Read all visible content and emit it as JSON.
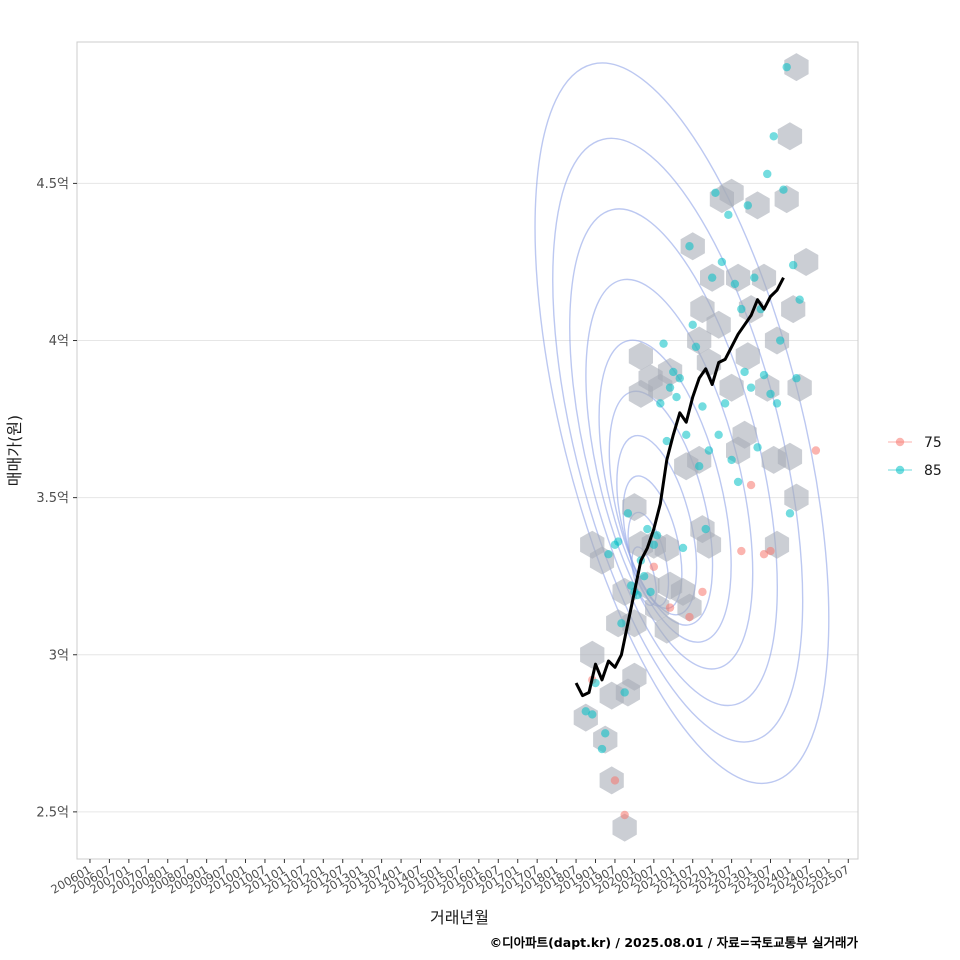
{
  "chart_data": {
    "type": "scatter",
    "xlabel": "거래년월",
    "ylabel": "매매가(원)",
    "caption": "©디아파트(dapt.kr) / 2025.08.01 / 자료=국토교통부 실거래가",
    "x_ticks": [
      "200601",
      "200607",
      "200701",
      "200707",
      "200801",
      "200807",
      "200901",
      "200907",
      "201001",
      "201007",
      "201101",
      "201107",
      "201201",
      "201207",
      "201301",
      "201307",
      "201401",
      "201407",
      "201501",
      "201507",
      "201601",
      "201607",
      "201701",
      "201707",
      "201801",
      "201807",
      "201901",
      "201907",
      "202001",
      "202007",
      "202101",
      "202107",
      "202201",
      "202207",
      "202301",
      "202307",
      "202401",
      "202407",
      "202501",
      "202507"
    ],
    "y_ticks": [
      {
        "value": 2.5,
        "label": "2.5억"
      },
      {
        "value": 3.0,
        "label": "3억"
      },
      {
        "value": 3.5,
        "label": "3.5억"
      },
      {
        "value": 4.0,
        "label": "4억"
      },
      {
        "value": 4.5,
        "label": "4.5억"
      }
    ],
    "ylim": [
      2.35,
      4.95
    ],
    "xlim": [
      "200509",
      "202510"
    ],
    "grid": "horizontal",
    "legend_position": "right",
    "series": [
      {
        "name": "75",
        "color": "#F8766D",
        "points": [
          {
            "x": "201812",
            "y": 2.92
          },
          {
            "x": "201907",
            "y": 2.6
          },
          {
            "x": "201910",
            "y": 2.49
          },
          {
            "x": "202007",
            "y": 3.28
          },
          {
            "x": "202012",
            "y": 3.15
          },
          {
            "x": "202106",
            "y": 3.12
          },
          {
            "x": "202110",
            "y": 3.2
          },
          {
            "x": "202210",
            "y": 3.33
          },
          {
            "x": "202301",
            "y": 3.54
          },
          {
            "x": "202305",
            "y": 3.32
          },
          {
            "x": "202307",
            "y": 3.33
          },
          {
            "x": "202409",
            "y": 3.65
          }
        ]
      },
      {
        "name": "85",
        "color": "#00BFC4",
        "points": [
          {
            "x": "201810",
            "y": 2.82
          },
          {
            "x": "201812",
            "y": 2.81
          },
          {
            "x": "201901",
            "y": 2.91
          },
          {
            "x": "201903",
            "y": 2.7
          },
          {
            "x": "201904",
            "y": 2.75
          },
          {
            "x": "201905",
            "y": 3.32
          },
          {
            "x": "201907",
            "y": 3.35
          },
          {
            "x": "201908",
            "y": 3.36
          },
          {
            "x": "201909",
            "y": 3.1
          },
          {
            "x": "201910",
            "y": 2.88
          },
          {
            "x": "201911",
            "y": 3.45
          },
          {
            "x": "201912",
            "y": 3.22
          },
          {
            "x": "202001",
            "y": 3.2
          },
          {
            "x": "202002",
            "y": 3.19
          },
          {
            "x": "202003",
            "y": 3.3
          },
          {
            "x": "202004",
            "y": 3.25
          },
          {
            "x": "202005",
            "y": 3.4
          },
          {
            "x": "202006",
            "y": 3.2
          },
          {
            "x": "202007",
            "y": 3.35
          },
          {
            "x": "202008",
            "y": 3.38
          },
          {
            "x": "202009",
            "y": 3.8
          },
          {
            "x": "202010",
            "y": 3.99
          },
          {
            "x": "202011",
            "y": 3.68
          },
          {
            "x": "202012",
            "y": 3.85
          },
          {
            "x": "202101",
            "y": 3.9
          },
          {
            "x": "202102",
            "y": 3.82
          },
          {
            "x": "202103",
            "y": 3.88
          },
          {
            "x": "202104",
            "y": 3.34
          },
          {
            "x": "202105",
            "y": 3.7
          },
          {
            "x": "202106",
            "y": 4.3
          },
          {
            "x": "202107",
            "y": 4.05
          },
          {
            "x": "202108",
            "y": 3.98
          },
          {
            "x": "202109",
            "y": 3.6
          },
          {
            "x": "202110",
            "y": 3.79
          },
          {
            "x": "202111",
            "y": 3.4
          },
          {
            "x": "202112",
            "y": 3.65
          },
          {
            "x": "202201",
            "y": 4.2
          },
          {
            "x": "202202",
            "y": 4.47
          },
          {
            "x": "202203",
            "y": 3.7
          },
          {
            "x": "202204",
            "y": 4.25
          },
          {
            "x": "202205",
            "y": 3.8
          },
          {
            "x": "202206",
            "y": 4.4
          },
          {
            "x": "202207",
            "y": 3.62
          },
          {
            "x": "202208",
            "y": 4.18
          },
          {
            "x": "202209",
            "y": 3.55
          },
          {
            "x": "202210",
            "y": 4.1
          },
          {
            "x": "202211",
            "y": 3.9
          },
          {
            "x": "202212",
            "y": 4.43
          },
          {
            "x": "202301",
            "y": 3.85
          },
          {
            "x": "202302",
            "y": 4.2
          },
          {
            "x": "202303",
            "y": 3.66
          },
          {
            "x": "202304",
            "y": 4.1
          },
          {
            "x": "202305",
            "y": 3.89
          },
          {
            "x": "202306",
            "y": 4.53
          },
          {
            "x": "202307",
            "y": 3.83
          },
          {
            "x": "202308",
            "y": 4.65
          },
          {
            "x": "202309",
            "y": 3.8
          },
          {
            "x": "202310",
            "y": 4.0
          },
          {
            "x": "202311",
            "y": 4.48
          },
          {
            "x": "202312",
            "y": 4.87
          },
          {
            "x": "202401",
            "y": 3.45
          },
          {
            "x": "202402",
            "y": 4.24
          },
          {
            "x": "202403",
            "y": 3.88
          },
          {
            "x": "202404",
            "y": 4.13
          }
        ]
      }
    ],
    "trend_line": [
      {
        "x": "201807",
        "y": 2.91
      },
      {
        "x": "201809",
        "y": 2.87
      },
      {
        "x": "201811",
        "y": 2.88
      },
      {
        "x": "201901",
        "y": 2.97
      },
      {
        "x": "201903",
        "y": 2.92
      },
      {
        "x": "201905",
        "y": 2.98
      },
      {
        "x": "201907",
        "y": 2.96
      },
      {
        "x": "201909",
        "y": 3.0
      },
      {
        "x": "201911",
        "y": 3.1
      },
      {
        "x": "202001",
        "y": 3.2
      },
      {
        "x": "202003",
        "y": 3.3
      },
      {
        "x": "202005",
        "y": 3.34
      },
      {
        "x": "202007",
        "y": 3.4
      },
      {
        "x": "202009",
        "y": 3.48
      },
      {
        "x": "202011",
        "y": 3.62
      },
      {
        "x": "202101",
        "y": 3.7
      },
      {
        "x": "202103",
        "y": 3.77
      },
      {
        "x": "202105",
        "y": 3.74
      },
      {
        "x": "202107",
        "y": 3.82
      },
      {
        "x": "202109",
        "y": 3.88
      },
      {
        "x": "202111",
        "y": 3.91
      },
      {
        "x": "202201",
        "y": 3.86
      },
      {
        "x": "202203",
        "y": 3.93
      },
      {
        "x": "202205",
        "y": 3.94
      },
      {
        "x": "202207",
        "y": 3.98
      },
      {
        "x": "202209",
        "y": 4.02
      },
      {
        "x": "202211",
        "y": 4.05
      },
      {
        "x": "202301",
        "y": 4.08
      },
      {
        "x": "202303",
        "y": 4.13
      },
      {
        "x": "202305",
        "y": 4.1
      },
      {
        "x": "202307",
        "y": 4.14
      },
      {
        "x": "202309",
        "y": 4.16
      },
      {
        "x": "202311",
        "y": 4.2
      }
    ],
    "hex_bins": [
      {
        "x": "201812",
        "y": 3.0
      },
      {
        "x": "201810",
        "y": 2.8
      },
      {
        "x": "201904",
        "y": 2.73
      },
      {
        "x": "201906",
        "y": 2.6
      },
      {
        "x": "201906",
        "y": 2.87
      },
      {
        "x": "201910",
        "y": 2.45
      },
      {
        "x": "201812",
        "y": 3.35
      },
      {
        "x": "201903",
        "y": 3.3
      },
      {
        "x": "201908",
        "y": 3.1
      },
      {
        "x": "201911",
        "y": 2.88
      },
      {
        "x": "202001",
        "y": 2.93
      },
      {
        "x": "202001",
        "y": 3.1
      },
      {
        "x": "202001",
        "y": 3.47
      },
      {
        "x": "202003",
        "y": 3.35
      },
      {
        "x": "202005",
        "y": 3.22
      },
      {
        "x": "202007",
        "y": 3.35
      },
      {
        "x": "202008",
        "y": 3.15
      },
      {
        "x": "202011",
        "y": 3.08
      },
      {
        "x": "202011",
        "y": 3.34
      },
      {
        "x": "202012",
        "y": 3.22
      },
      {
        "x": "202003",
        "y": 3.95
      },
      {
        "x": "202003",
        "y": 3.83
      },
      {
        "x": "202006",
        "y": 3.88
      },
      {
        "x": "202009",
        "y": 3.85
      },
      {
        "x": "202012",
        "y": 3.9
      },
      {
        "x": "202105",
        "y": 3.6
      },
      {
        "x": "202109",
        "y": 3.62
      },
      {
        "x": "202110",
        "y": 3.4
      },
      {
        "x": "202112",
        "y": 3.35
      },
      {
        "x": "202107",
        "y": 4.3
      },
      {
        "x": "202110",
        "y": 4.1
      },
      {
        "x": "202109",
        "y": 4.0
      },
      {
        "x": "202112",
        "y": 3.93
      },
      {
        "x": "202201",
        "y": 4.2
      },
      {
        "x": "202203",
        "y": 4.05
      },
      {
        "x": "202204",
        "y": 4.45
      },
      {
        "x": "202207",
        "y": 4.47
      },
      {
        "x": "202209",
        "y": 4.2
      },
      {
        "x": "202207",
        "y": 3.85
      },
      {
        "x": "202209",
        "y": 3.65
      },
      {
        "x": "202211",
        "y": 3.7
      },
      {
        "x": "202212",
        "y": 3.95
      },
      {
        "x": "202301",
        "y": 4.1
      },
      {
        "x": "202303",
        "y": 4.43
      },
      {
        "x": "202305",
        "y": 4.2
      },
      {
        "x": "202306",
        "y": 3.85
      },
      {
        "x": "202308",
        "y": 3.62
      },
      {
        "x": "202309",
        "y": 3.35
      },
      {
        "x": "202309",
        "y": 4.0
      },
      {
        "x": "202312",
        "y": 4.45
      },
      {
        "x": "202401",
        "y": 4.65
      },
      {
        "x": "202403",
        "y": 4.87
      },
      {
        "x": "202402",
        "y": 4.1
      },
      {
        "x": "202406",
        "y": 4.25
      },
      {
        "x": "202404",
        "y": 3.85
      },
      {
        "x": "202401",
        "y": 3.63
      },
      {
        "x": "202403",
        "y": 3.5
      },
      {
        "x": "201910",
        "y": 3.2
      },
      {
        "x": "202104",
        "y": 3.2
      },
      {
        "x": "202106",
        "y": 3.15
      }
    ],
    "density_center": {
      "x": "202004",
      "y": 3.25
    }
  },
  "legend": [
    {
      "label": "75",
      "color": "#F8766D"
    },
    {
      "label": "85",
      "color": "#00BFC4"
    }
  ]
}
